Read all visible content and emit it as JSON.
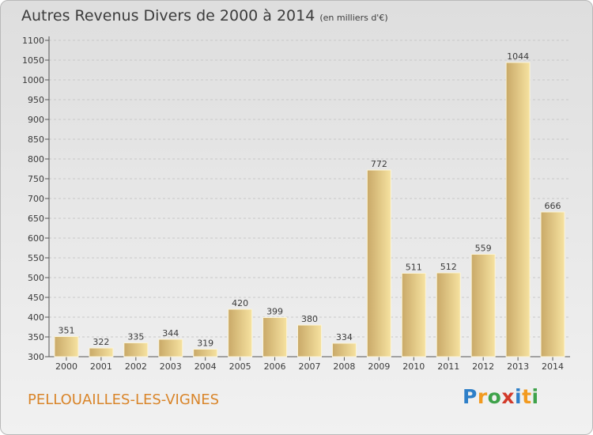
{
  "header": {
    "title": "Autres Revenus Divers de 2000 à 2014",
    "unit": "(en milliers d'€)"
  },
  "footer": {
    "town": "PELLOUAILLES-LES-VIGNES",
    "logo": "Proxiti",
    "logo_letters": [
      {
        "ch": "P",
        "color": "#2e7fc8"
      },
      {
        "ch": "r",
        "color": "#f29a1f"
      },
      {
        "ch": "o",
        "color": "#3ea24a"
      },
      {
        "ch": "x",
        "color": "#d23a2a"
      },
      {
        "ch": "i",
        "color": "#2e7fc8"
      },
      {
        "ch": "t",
        "color": "#f29a1f"
      },
      {
        "ch": "i",
        "color": "#3ea24a"
      }
    ]
  },
  "colors": {
    "bar_light": "#f6e2a0",
    "bar_dark": "#c9a968",
    "grid": "#c8c8c8",
    "town": "#d9852a"
  },
  "chart_data": {
    "type": "bar",
    "title": "Autres Revenus Divers de 2000 à 2014",
    "subtitle": "(en milliers d'€)",
    "categories": [
      "2000",
      "2001",
      "2002",
      "2003",
      "2004",
      "2005",
      "2006",
      "2007",
      "2008",
      "2009",
      "2010",
      "2011",
      "2012",
      "2013",
      "2014"
    ],
    "values": [
      351,
      322,
      335,
      344,
      319,
      420,
      399,
      380,
      334,
      772,
      511,
      512,
      559,
      1044,
      666
    ],
    "ylim": [
      300,
      1100
    ],
    "yticks": [
      300,
      350,
      400,
      450,
      500,
      550,
      600,
      650,
      700,
      750,
      800,
      850,
      900,
      950,
      1000,
      1050,
      1100
    ],
    "grid": "horizontal dashed",
    "legend": "none"
  }
}
